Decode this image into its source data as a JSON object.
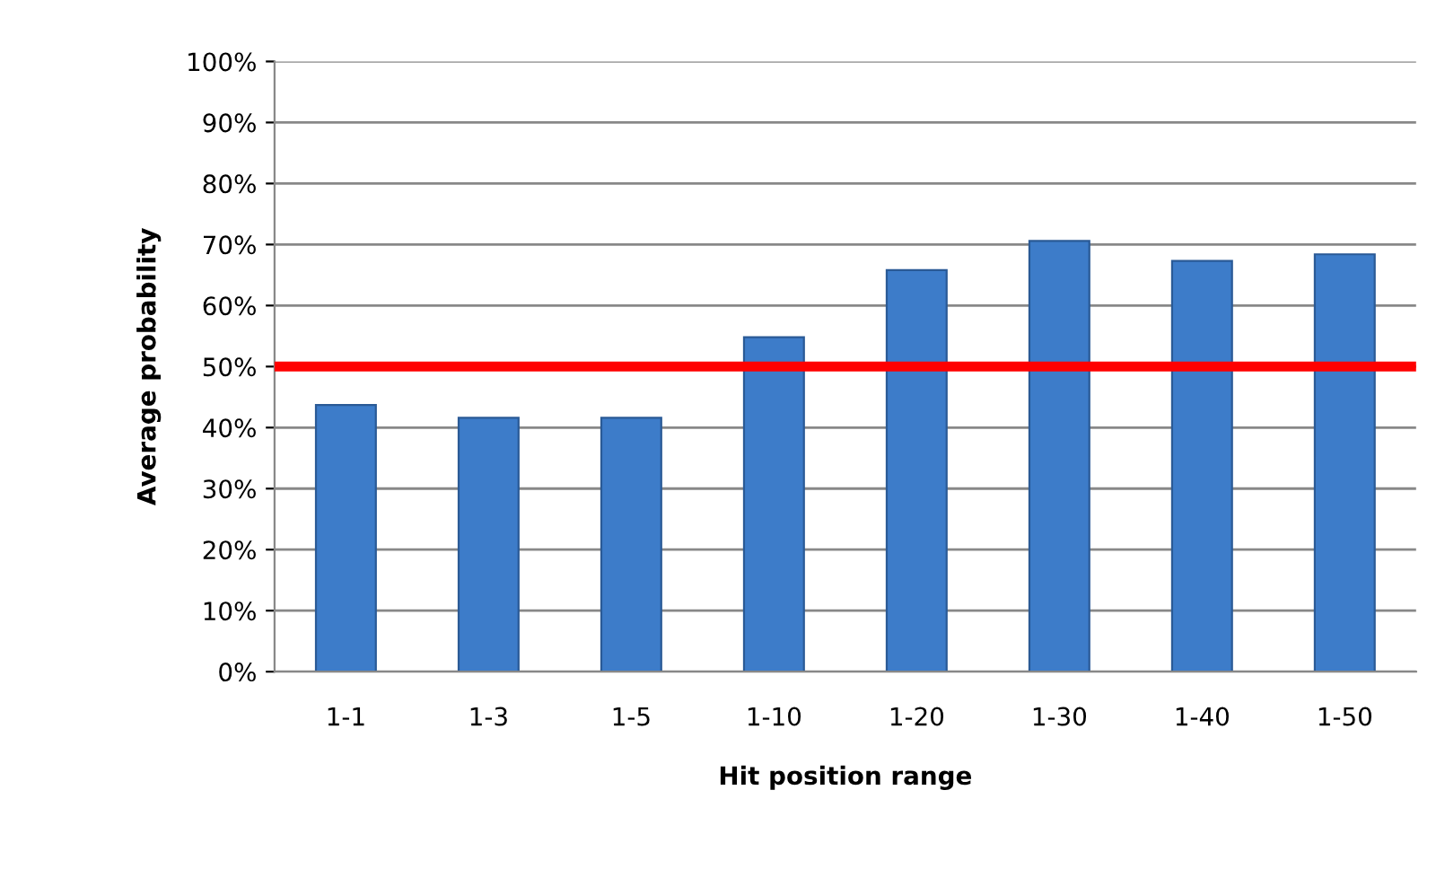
{
  "chart_data": {
    "type": "bar",
    "xlabel": "Hit position range",
    "ylabel": "Average probability",
    "categories": [
      "1-1",
      "1-3",
      "1-5",
      "1-10",
      "1-20",
      "1-30",
      "1-40",
      "1-50"
    ],
    "values": [
      43.7,
      41.6,
      41.6,
      54.8,
      65.8,
      70.6,
      67.3,
      68.4
    ],
    "color": "#3d7cc9",
    "ylim": [
      0,
      100
    ],
    "yticks": [
      {
        "value": 0,
        "label": "0%"
      },
      {
        "value": 10,
        "label": "10%"
      },
      {
        "value": 20,
        "label": "20%"
      },
      {
        "value": 30,
        "label": "30%"
      },
      {
        "value": 40,
        "label": "40%"
      },
      {
        "value": 50,
        "label": "50%"
      },
      {
        "value": 60,
        "label": "60%"
      },
      {
        "value": 70,
        "label": "70%"
      },
      {
        "value": 80,
        "label": "80%"
      },
      {
        "value": 90,
        "label": "90%"
      },
      {
        "value": 100,
        "label": "100%"
      }
    ],
    "grid": "y",
    "ref_lines": [
      {
        "axis": "y",
        "value": 50,
        "color": "#ff0000"
      }
    ]
  }
}
